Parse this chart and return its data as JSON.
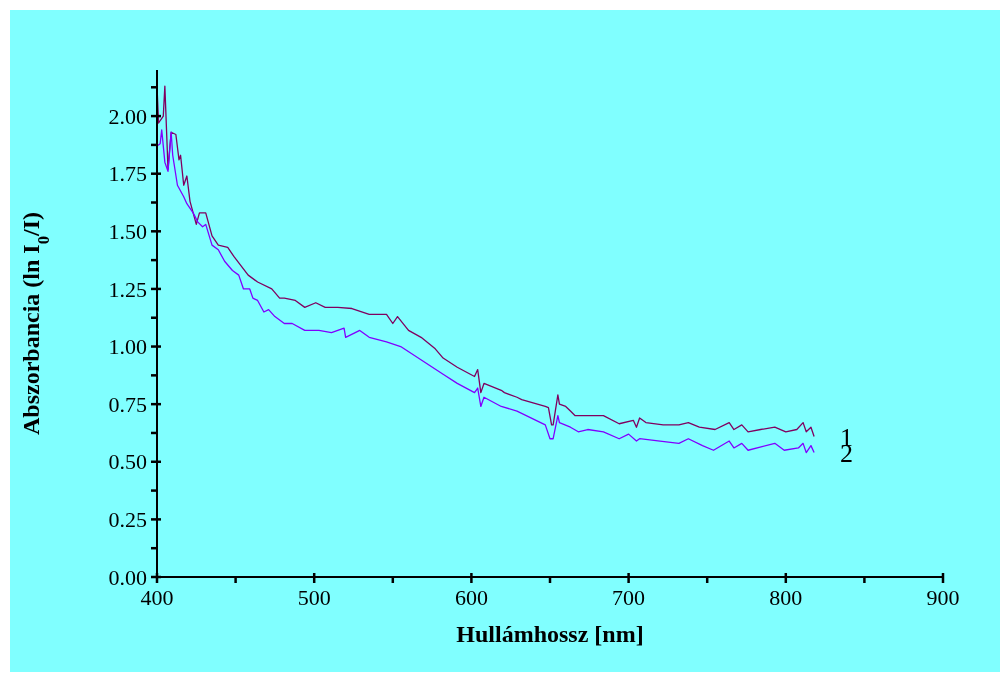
{
  "chart_data": {
    "type": "line",
    "xlabel": "Hullámhossz [nm]",
    "ylabel": "Abszorbancia (ln I$_{0}$/I)",
    "xlim": [
      400,
      900
    ],
    "xticks": [
      400,
      {
        "value": 450,
        "label": null
      },
      500,
      {
        "value": 550,
        "label": null
      },
      600,
      {
        "value": 650,
        "label": null
      },
      700,
      {
        "value": 750,
        "label": null
      },
      800,
      {
        "value": 850,
        "label": null
      },
      900
    ],
    "ylim": [
      0,
      2.2
    ],
    "yticks": [
      {
        "value": 0,
        "label": "0.00"
      },
      {
        "value": 0.125,
        "label": null
      },
      {
        "value": 0.25,
        "label": "0.25"
      },
      {
        "value": 0.375,
        "label": null
      },
      {
        "value": 0.5,
        "label": "0.50"
      },
      {
        "value": 0.625,
        "label": null
      },
      {
        "value": 0.75,
        "label": "0.75"
      },
      {
        "value": 0.875,
        "label": null
      },
      {
        "value": 1,
        "label": "1.00"
      },
      {
        "value": 1.125,
        "label": null
      },
      {
        "value": 1.25,
        "label": "1.25"
      },
      {
        "value": 1.375,
        "label": null
      },
      {
        "value": 1.5,
        "label": "1.50"
      },
      {
        "value": 1.625,
        "label": null
      },
      {
        "value": 1.75,
        "label": "1.75"
      },
      {
        "value": 1.875,
        "label": null
      },
      {
        "value": 2,
        "label": "2.00"
      },
      {
        "value": 2.125,
        "label": null
      }
    ],
    "marker": "none",
    "line_style": "solid",
    "legend": false,
    "series": [
      {
        "name": "1",
        "color": "#800060",
        "x": [
          400,
          401,
          404,
          405,
          407,
          409,
          412,
          414,
          415,
          417,
          419,
          421,
          425,
          427,
          431,
          435,
          439,
          445,
          449,
          458,
          464,
          473,
          478,
          481,
          488,
          494,
          501,
          507,
          515,
          524,
          535,
          546,
          550,
          553,
          560,
          568,
          577,
          582,
          591,
          602,
          604,
          606,
          608,
          619,
          621,
          629,
          632,
          647,
          649,
          651,
          652,
          655,
          656,
          660,
          663,
          666,
          674,
          684,
          694,
          703,
          705,
          707,
          711,
          722,
          732,
          738,
          745,
          755,
          764,
          767,
          772,
          776,
          784,
          793,
          800,
          807,
          811,
          813,
          816,
          818
        ],
        "values": [
          2.13,
          1.97,
          2.0,
          2.13,
          1.77,
          1.93,
          1.92,
          1.81,
          1.83,
          1.7,
          1.74,
          1.63,
          1.53,
          1.58,
          1.58,
          1.48,
          1.44,
          1.43,
          1.39,
          1.31,
          1.28,
          1.25,
          1.21,
          1.21,
          1.2,
          1.17,
          1.19,
          1.17,
          1.17,
          1.165,
          1.14,
          1.14,
          1.1,
          1.13,
          1.07,
          1.04,
          0.99,
          0.95,
          0.91,
          0.87,
          0.9,
          0.8,
          0.84,
          0.81,
          0.8,
          0.78,
          0.77,
          0.74,
          0.735,
          0.66,
          0.66,
          0.79,
          0.75,
          0.74,
          0.72,
          0.7,
          0.7,
          0.7,
          0.665,
          0.68,
          0.65,
          0.69,
          0.67,
          0.66,
          0.66,
          0.67,
          0.65,
          0.64,
          0.67,
          0.64,
          0.66,
          0.63,
          0.64,
          0.65,
          0.63,
          0.64,
          0.67,
          0.63,
          0.65,
          0.61
        ]
      },
      {
        "name": "2",
        "color": "#8000ff",
        "x": [
          400,
          402,
          403,
          405,
          407,
          409,
          410,
          413,
          417,
          419,
          423,
          426,
          429,
          431,
          435,
          439,
          443,
          448,
          452,
          455,
          459,
          461,
          464,
          468,
          471,
          475,
          481,
          486,
          494,
          503,
          511,
          519,
          520,
          529,
          535,
          546,
          555,
          582,
          591,
          602,
          604,
          606,
          608,
          619,
          629,
          647,
          650,
          652,
          655,
          656,
          663,
          668,
          674,
          684,
          694,
          700,
          705,
          707,
          720,
          732,
          738,
          747,
          754,
          764,
          767,
          772,
          776,
          793,
          799,
          808,
          811,
          813,
          816,
          818
        ],
        "values": [
          1.87,
          1.88,
          1.94,
          1.8,
          1.76,
          1.93,
          1.83,
          1.7,
          1.65,
          1.62,
          1.58,
          1.54,
          1.52,
          1.53,
          1.44,
          1.42,
          1.37,
          1.33,
          1.31,
          1.25,
          1.25,
          1.21,
          1.2,
          1.15,
          1.16,
          1.13,
          1.1,
          1.1,
          1.07,
          1.07,
          1.06,
          1.08,
          1.04,
          1.07,
          1.04,
          1.02,
          1.0,
          0.88,
          0.84,
          0.8,
          0.82,
          0.74,
          0.78,
          0.74,
          0.72,
          0.66,
          0.6,
          0.6,
          0.7,
          0.67,
          0.65,
          0.63,
          0.64,
          0.63,
          0.6,
          0.62,
          0.59,
          0.6,
          0.59,
          0.58,
          0.6,
          0.57,
          0.55,
          0.59,
          0.56,
          0.58,
          0.55,
          0.58,
          0.55,
          0.56,
          0.58,
          0.54,
          0.57,
          0.54
        ]
      }
    ]
  }
}
